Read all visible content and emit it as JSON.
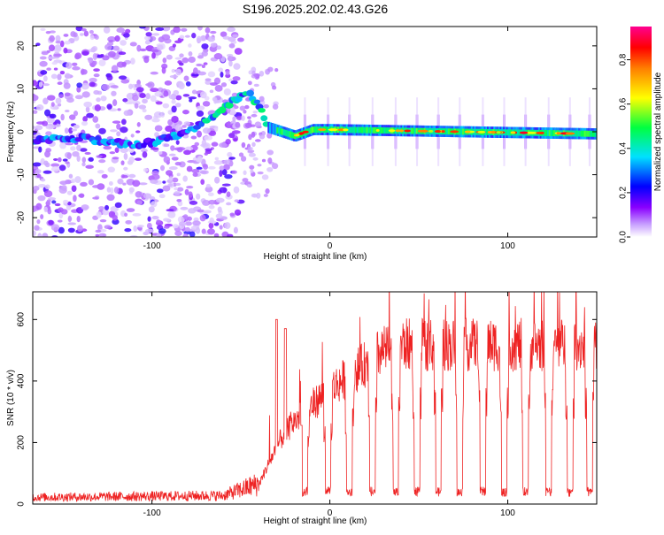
{
  "figure": {
    "title": "S196.2025.202.02.43.G26"
  },
  "chart_data": [
    {
      "type": "heatmap",
      "name": "spectrogram",
      "xlabel": "Height of straight line (km)",
      "ylabel": "Frequency (Hz)",
      "xlim": [
        -167,
        150
      ],
      "ylim": [
        -24.5,
        24.5
      ],
      "xticks": [
        -100,
        0,
        100
      ],
      "yticks": [
        -20,
        -10,
        0,
        10,
        20
      ],
      "grid": false,
      "colorbar": {
        "label": "Normalized spectral amplitude",
        "range": [
          0,
          0.95
        ],
        "ticks": [
          0.0,
          0.2,
          0.4,
          0.6,
          0.8
        ],
        "colormap": [
          "#ffffff",
          "#8a00ff",
          "#0000ff",
          "#00e0ff",
          "#00ff00",
          "#ffff00",
          "#ff8000",
          "#ff0000",
          "#ff00a0"
        ]
      },
      "ridge": [
        {
          "x": -160,
          "y": -2
        },
        {
          "x": -140,
          "y": -1.5
        },
        {
          "x": -110,
          "y": -3
        },
        {
          "x": -95,
          "y": -2
        },
        {
          "x": -80,
          "y": 0
        },
        {
          "x": -65,
          "y": 4
        },
        {
          "x": -55,
          "y": 7
        },
        {
          "x": -45,
          "y": 9
        },
        {
          "x": -38,
          "y": 5
        },
        {
          "x": -35,
          "y": 1
        },
        {
          "x": -20,
          "y": -1
        },
        {
          "x": -10,
          "y": 0.5
        },
        {
          "x": 0,
          "y": 0.5
        },
        {
          "x": 150,
          "y": -0.5
        }
      ]
    },
    {
      "type": "line",
      "name": "snr",
      "xlabel": "Height of straight line (km)",
      "ylabel": "SNR (10 * v/v)",
      "xlim": [
        -167,
        150
      ],
      "ylim": [
        0,
        690
      ],
      "xticks": [
        -100,
        0,
        100
      ],
      "yticks": [
        0,
        200,
        400,
        600
      ],
      "grid": false,
      "line_color": "#ee2222",
      "baseline": [
        {
          "x": -167,
          "y": 20
        },
        {
          "x": -60,
          "y": 25
        },
        {
          "x": -40,
          "y": 60
        },
        {
          "x": -35,
          "y": 120
        },
        {
          "x": -28,
          "y": 200
        },
        {
          "x": -20,
          "y": 260
        },
        {
          "x": -10,
          "y": 310
        },
        {
          "x": 0,
          "y": 360
        },
        {
          "x": 10,
          "y": 400
        },
        {
          "x": 20,
          "y": 440
        },
        {
          "x": 30,
          "y": 480
        },
        {
          "x": 40,
          "y": 500
        },
        {
          "x": 150,
          "y": 500
        }
      ],
      "spikes": [
        {
          "x": -30,
          "y": 600
        },
        {
          "x": -25,
          "y": 570
        },
        {
          "x": -16,
          "y": 400
        }
      ],
      "dropouts": [
        -14,
        -1,
        11,
        24,
        37,
        49,
        61,
        73,
        86,
        98,
        110,
        123,
        135,
        146
      ],
      "dropout_level": 40
    }
  ]
}
